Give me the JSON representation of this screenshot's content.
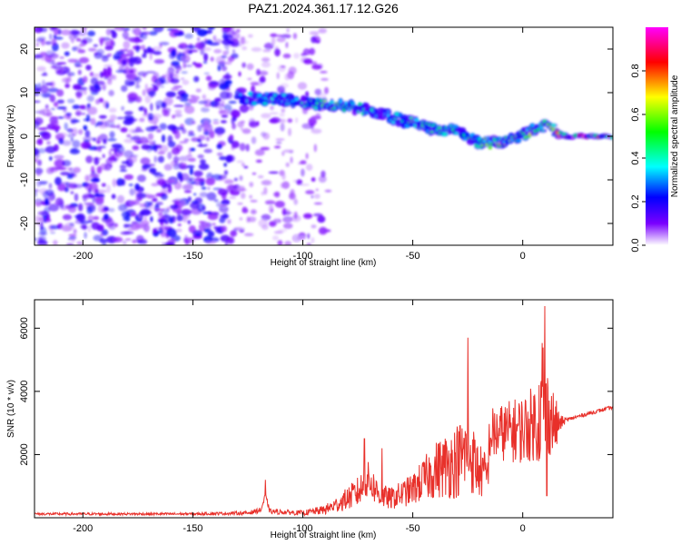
{
  "title": "PAZ1.2024.361.17.12.G26",
  "colors": {
    "snr_line": "#e8302a",
    "frame": "#000000",
    "background": "#ffffff"
  },
  "chart_data": [
    {
      "type": "heatmap",
      "xlabel": "Height of straight line (km)",
      "ylabel": "Frequency (Hz)",
      "xlim": [
        -222,
        41
      ],
      "ylim": [
        -25,
        25
      ],
      "x_ticks": [
        -200,
        -150,
        -100,
        -50,
        0
      ],
      "y_ticks": [
        -20,
        -10,
        0,
        10,
        20
      ],
      "colorbar": {
        "label": "Normalized spectral amplitude",
        "range": [
          0,
          1
        ],
        "ticks": [
          0.0,
          0.2,
          0.4,
          0.6,
          0.8
        ],
        "colormap": [
          "#ffffff",
          "#7a00ff",
          "#0000ff",
          "#00ffff",
          "#00ff00",
          "#ffff00",
          "#ff0000",
          "#ff00ff"
        ]
      },
      "ridge": {
        "x": [
          -130,
          -120,
          -110,
          -100,
          -90,
          -80,
          -70,
          -60,
          -50,
          -40,
          -30,
          -20,
          -10,
          0,
          10,
          20,
          41
        ],
        "frequency": [
          9,
          8.5,
          8.5,
          8,
          7,
          7,
          6,
          4.5,
          3,
          1.5,
          1.5,
          -1.5,
          -1.5,
          0.5,
          2.5,
          0,
          0
        ],
        "amplitude": [
          0.3,
          0.35,
          0.35,
          0.4,
          0.55,
          0.5,
          0.4,
          0.35,
          0.45,
          0.4,
          0.45,
          0.5,
          0.6,
          0.55,
          0.6,
          0.9,
          0.9
        ]
      },
      "noise": {
        "x_range": [
          -222,
          -88
        ],
        "amplitude": 0.15
      }
    },
    {
      "type": "line",
      "xlabel": "Height of straight line (km)",
      "ylabel": "SNR (10 * v/v)",
      "xlim": [
        -222,
        41
      ],
      "ylim": [
        0,
        6900
      ],
      "x_ticks": [
        -200,
        -150,
        -100,
        -50,
        0
      ],
      "y_ticks": [
        2000,
        4000,
        6000
      ],
      "profile": {
        "x": [
          -222,
          -150,
          -125,
          -119,
          -117,
          -115,
          -100,
          -90,
          -85,
          -80,
          -75,
          -70,
          -65,
          -60,
          -50,
          -40,
          -30,
          -25,
          -20,
          -16,
          -15,
          -10,
          0,
          5,
          8,
          9,
          10,
          15,
          17,
          20,
          30,
          41
        ],
        "mean": [
          120,
          120,
          150,
          250,
          700,
          200,
          150,
          250,
          400,
          600,
          800,
          1200,
          700,
          600,
          900,
          1500,
          1800,
          2100,
          1500,
          1300,
          2600,
          2700,
          2800,
          3000,
          3200,
          3700,
          3500,
          2900,
          3000,
          3100,
          3300,
          3500
        ],
        "noise": [
          40,
          40,
          60,
          80,
          100,
          80,
          80,
          150,
          250,
          350,
          500,
          600,
          400,
          350,
          500,
          900,
          1200,
          1300,
          900,
          700,
          900,
          900,
          1100,
          1200,
          1600,
          2800,
          1600,
          900,
          250,
          60,
          60,
          60
        ]
      },
      "peaks": [
        {
          "x": -117,
          "y": 1200
        },
        {
          "x": -72,
          "y": 2500
        },
        {
          "x": -64,
          "y": 2200
        },
        {
          "x": -25,
          "y": 5700
        },
        {
          "x": 10,
          "y": 6700
        },
        {
          "x": 11,
          "y": 700
        }
      ]
    }
  ]
}
